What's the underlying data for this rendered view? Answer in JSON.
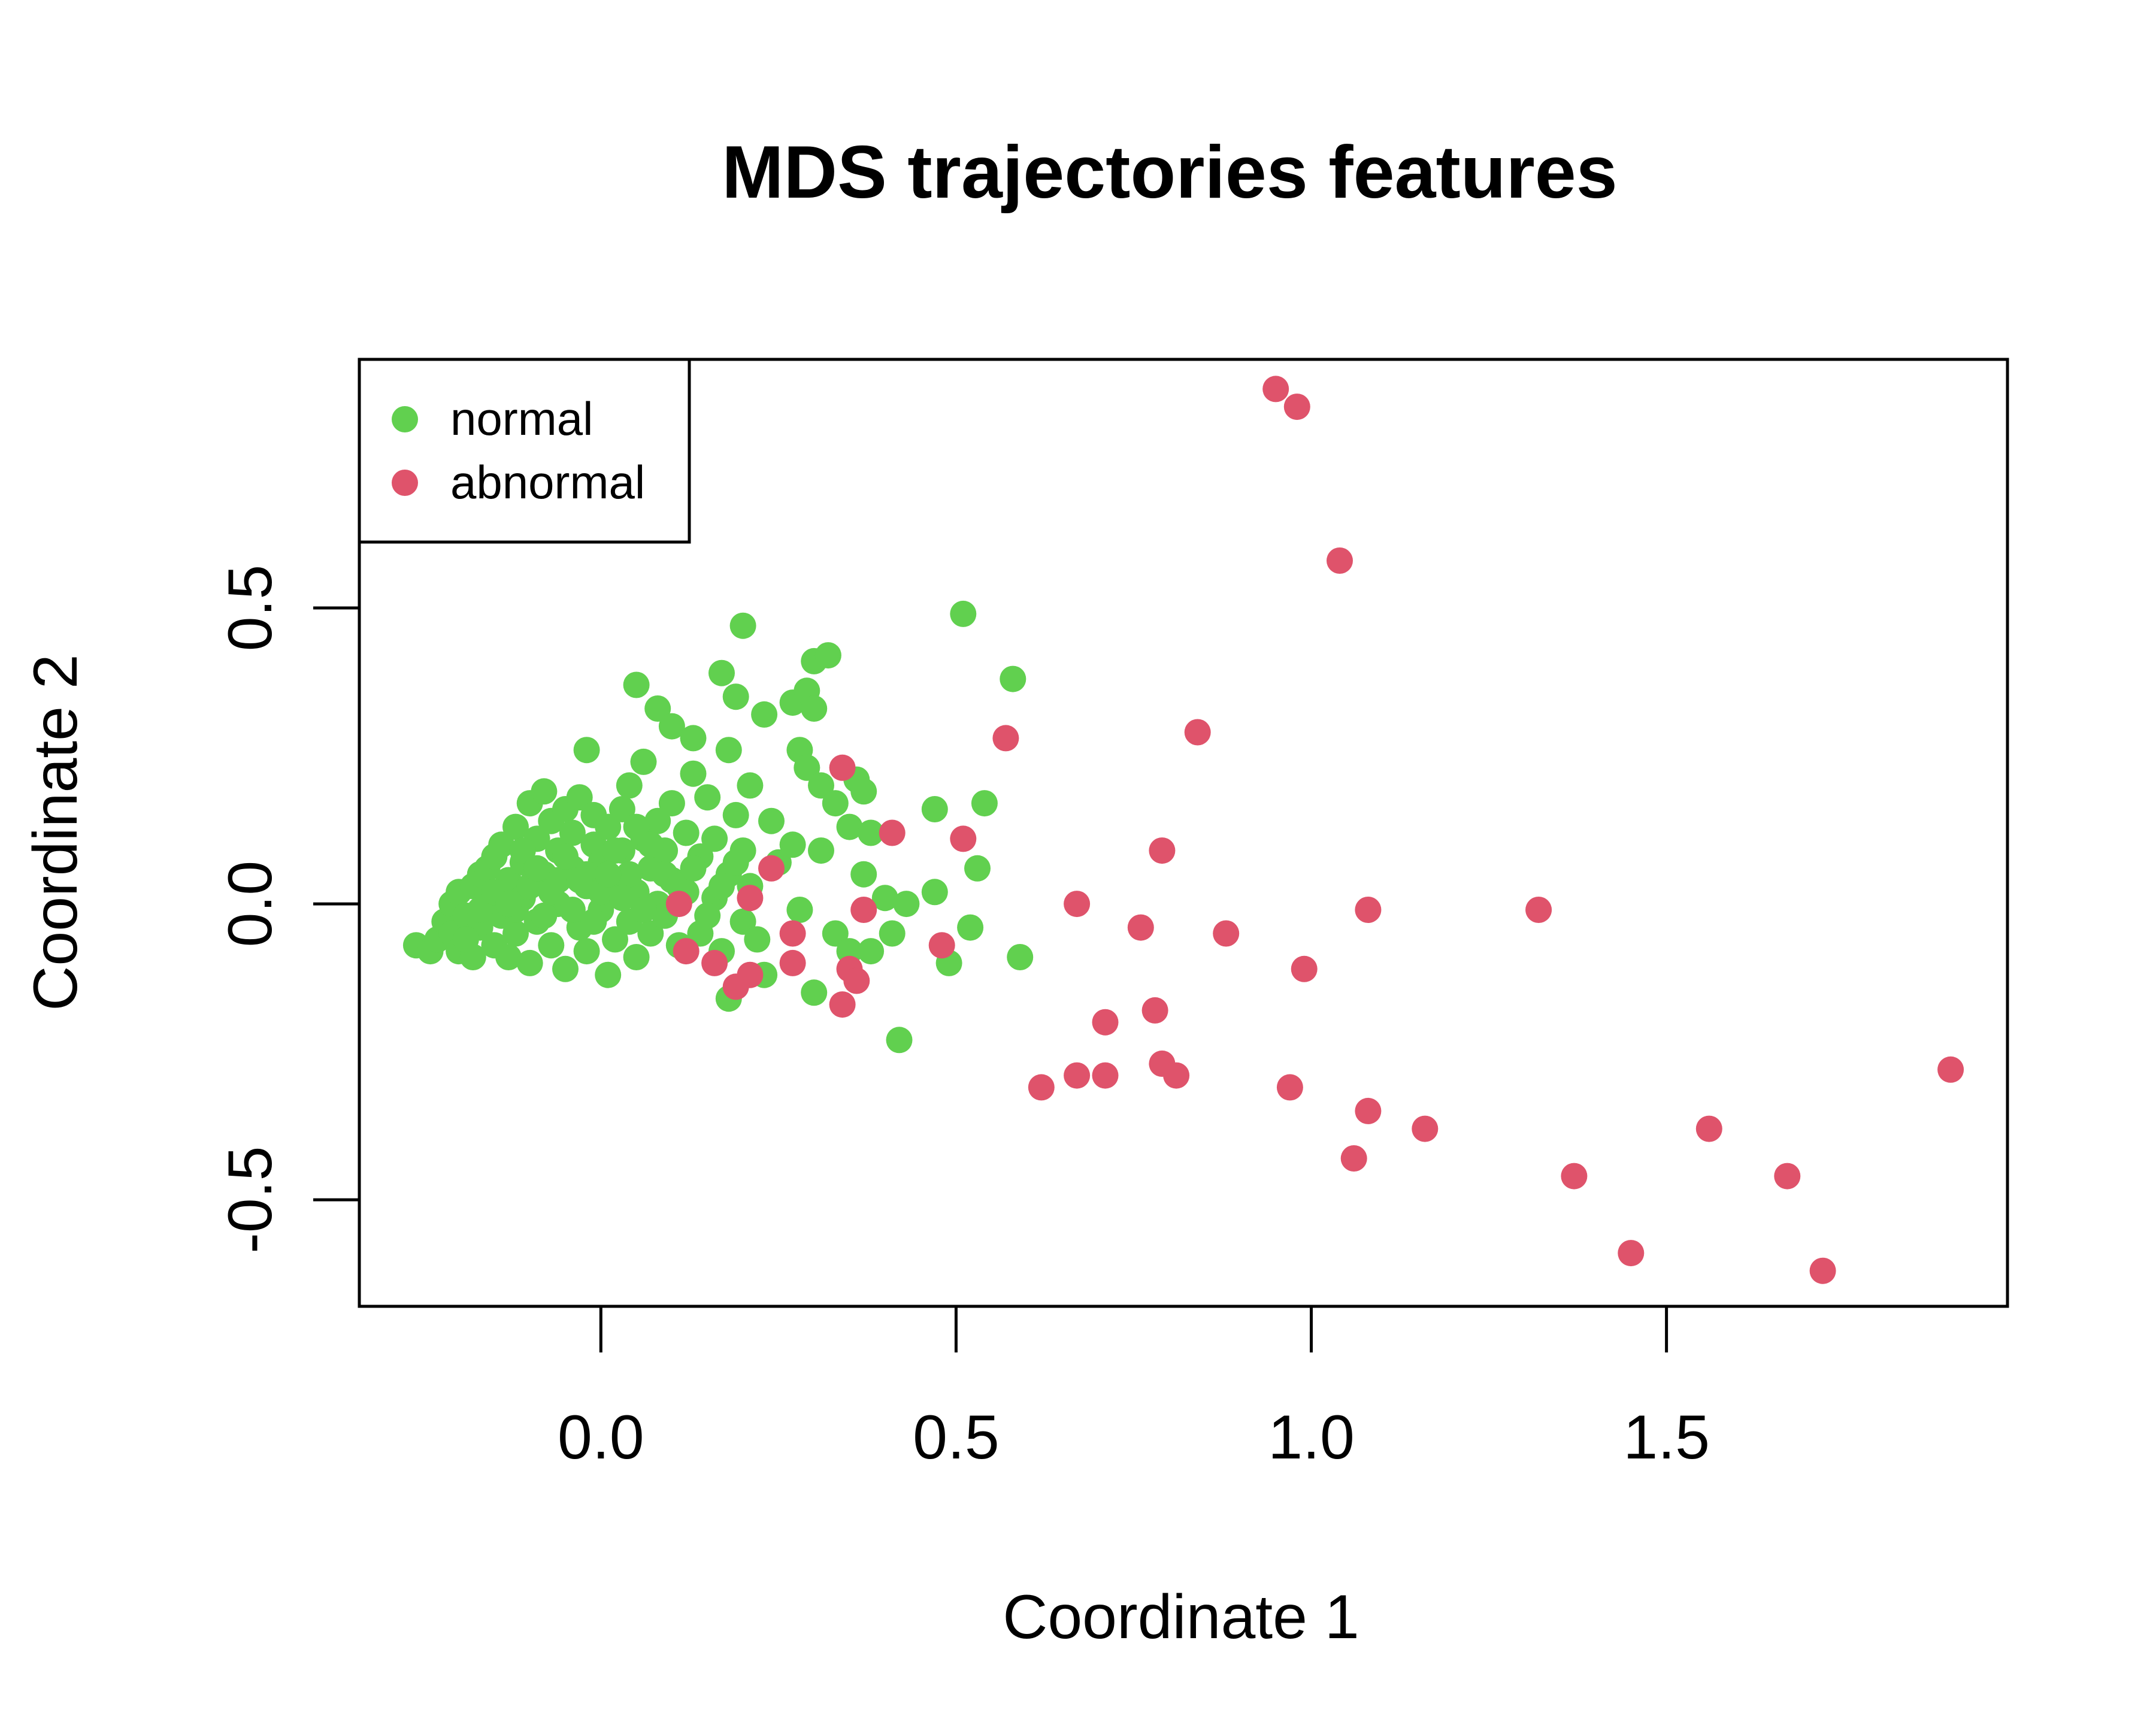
{
  "chart_data": {
    "type": "scatter",
    "title": "MDS trajectories features",
    "xlabel": "Coordinate 1",
    "ylabel": "Coordinate 2",
    "xlim": [
      -0.34,
      1.98
    ],
    "ylim": [
      -0.68,
      0.92
    ],
    "x_ticks": [
      {
        "value": 0.0,
        "label": "0.0"
      },
      {
        "value": 0.5,
        "label": "0.5"
      },
      {
        "value": 1.0,
        "label": "1.0"
      },
      {
        "value": 1.5,
        "label": "1.5"
      }
    ],
    "y_ticks": [
      {
        "value": -0.5,
        "label": "-0.5"
      },
      {
        "value": 0.0,
        "label": "0.0"
      },
      {
        "value": 0.5,
        "label": "0.5"
      }
    ],
    "grid": false,
    "legend": {
      "position": "top-left",
      "entries": [
        {
          "label": "normal",
          "color": "#61D04F"
        },
        {
          "label": "abnormal",
          "color": "#DF536B"
        }
      ]
    },
    "series": [
      {
        "name": "normal",
        "color": "#61D04F",
        "points": [
          [
            -0.26,
            -0.07
          ],
          [
            -0.24,
            -0.08
          ],
          [
            -0.23,
            -0.06
          ],
          [
            -0.22,
            -0.03
          ],
          [
            -0.21,
            0.0
          ],
          [
            -0.21,
            -0.05
          ],
          [
            -0.2,
            0.02
          ],
          [
            -0.2,
            -0.08
          ],
          [
            -0.19,
            -0.02
          ],
          [
            -0.18,
            0.03
          ],
          [
            -0.18,
            -0.09
          ],
          [
            -0.17,
            0.05
          ],
          [
            -0.17,
            -0.04
          ],
          [
            -0.16,
            0.01
          ],
          [
            -0.16,
            0.06
          ],
          [
            -0.15,
            -0.07
          ],
          [
            -0.15,
            0.08
          ],
          [
            -0.14,
            -0.02
          ],
          [
            -0.14,
            0.1
          ],
          [
            -0.13,
            0.04
          ],
          [
            -0.13,
            -0.09
          ],
          [
            -0.12,
            0.13
          ],
          [
            -0.12,
            -0.05
          ],
          [
            -0.11,
            0.07
          ],
          [
            -0.11,
            0.01
          ],
          [
            -0.1,
            0.17
          ],
          [
            -0.1,
            -0.1
          ],
          [
            -0.09,
            0.11
          ],
          [
            -0.09,
            -0.03
          ],
          [
            -0.08,
            0.19
          ],
          [
            -0.08,
            0.05
          ],
          [
            -0.07,
            0.14
          ],
          [
            -0.07,
            -0.07
          ],
          [
            -0.06,
            0.09
          ],
          [
            -0.06,
            0.0
          ],
          [
            -0.05,
            0.16
          ],
          [
            -0.05,
            -0.11
          ],
          [
            -0.04,
            0.06
          ],
          [
            -0.04,
            0.12
          ],
          [
            -0.03,
            -0.04
          ],
          [
            -0.03,
            0.18
          ],
          [
            -0.02,
            0.03
          ],
          [
            -0.02,
            -0.08
          ],
          [
            -0.01,
            0.1
          ],
          [
            -0.01,
            0.15
          ],
          [
            0.0,
            -0.01
          ],
          [
            0.0,
            0.07
          ],
          [
            0.01,
            -0.12
          ],
          [
            0.01,
            0.13
          ],
          [
            0.02,
            0.04
          ],
          [
            0.02,
            -0.06
          ],
          [
            0.03,
            0.16
          ],
          [
            0.03,
            0.09
          ],
          [
            0.04,
            -0.03
          ],
          [
            0.04,
            0.2
          ],
          [
            0.05,
            0.02
          ],
          [
            0.05,
            -0.09
          ],
          [
            0.06,
            0.11
          ],
          [
            0.06,
            0.24
          ],
          [
            0.07,
            0.06
          ],
          [
            0.07,
            -0.05
          ],
          [
            0.08,
            0.14
          ],
          [
            0.08,
            0.0
          ],
          [
            0.09,
            0.09
          ],
          [
            0.09,
            -0.02
          ],
          [
            0.1,
            0.17
          ],
          [
            0.1,
            0.04
          ],
          [
            0.11,
            -0.07
          ],
          [
            0.12,
            0.12
          ],
          [
            0.12,
            0.02
          ],
          [
            0.13,
            0.22
          ],
          [
            0.14,
            -0.05
          ],
          [
            0.14,
            0.08
          ],
          [
            0.15,
            0.18
          ],
          [
            0.16,
            0.01
          ],
          [
            0.16,
            0.11
          ],
          [
            0.17,
            -0.08
          ],
          [
            0.18,
            0.26
          ],
          [
            0.18,
            0.05
          ],
          [
            0.19,
            0.15
          ],
          [
            0.2,
            -0.03
          ],
          [
            0.2,
            0.09
          ],
          [
            0.21,
            0.2
          ],
          [
            0.22,
            -0.06
          ],
          [
            -0.02,
            0.26
          ],
          [
            0.05,
            0.37
          ],
          [
            0.08,
            0.33
          ],
          [
            0.1,
            0.3
          ],
          [
            0.13,
            0.28
          ],
          [
            0.17,
            0.39
          ],
          [
            0.19,
            0.35
          ],
          [
            0.2,
            0.47
          ],
          [
            0.23,
            0.32
          ],
          [
            0.27,
            0.34
          ],
          [
            0.29,
            0.36
          ],
          [
            0.3,
            0.33
          ],
          [
            0.3,
            0.41
          ],
          [
            0.32,
            0.42
          ],
          [
            0.28,
            0.26
          ],
          [
            0.29,
            0.23
          ],
          [
            0.31,
            0.2
          ],
          [
            0.33,
            0.17
          ],
          [
            0.36,
            0.21
          ],
          [
            0.37,
            0.19
          ],
          [
            0.35,
            0.13
          ],
          [
            0.38,
            0.12
          ],
          [
            0.37,
            0.05
          ],
          [
            0.4,
            0.01
          ],
          [
            0.43,
            0.0
          ],
          [
            0.47,
            0.02
          ],
          [
            0.41,
            -0.05
          ],
          [
            0.52,
            -0.04
          ],
          [
            0.53,
            0.06
          ],
          [
            0.47,
            0.16
          ],
          [
            0.54,
            0.17
          ],
          [
            0.51,
            0.49
          ],
          [
            0.58,
            0.38
          ],
          [
            0.59,
            -0.09
          ],
          [
            0.49,
            -0.1
          ],
          [
            0.42,
            -0.23
          ],
          [
            0.3,
            -0.15
          ],
          [
            0.18,
            -0.16
          ],
          [
            0.23,
            -0.12
          ],
          [
            0.33,
            -0.05
          ],
          [
            0.35,
            -0.08
          ],
          [
            0.38,
            -0.08
          ],
          [
            0.25,
            0.07
          ],
          [
            0.27,
            0.1
          ],
          [
            0.24,
            0.14
          ],
          [
            0.21,
            0.03
          ],
          [
            0.28,
            -0.01
          ],
          [
            0.31,
            0.09
          ],
          [
            -0.17,
            -0.01
          ],
          [
            -0.15,
            0.02
          ],
          [
            -0.12,
            -0.01
          ],
          [
            -0.1,
            0.03
          ],
          [
            -0.08,
            -0.02
          ],
          [
            -0.06,
            0.04
          ],
          [
            -0.04,
            -0.01
          ],
          [
            -0.02,
            0.05
          ],
          [
            0.0,
            0.02
          ],
          [
            0.02,
            0.09
          ],
          [
            0.04,
            0.05
          ],
          [
            0.06,
            -0.01
          ],
          [
            -0.19,
            -0.06
          ],
          [
            -0.13,
            0.0
          ],
          [
            -0.11,
            0.09
          ],
          [
            -0.09,
            0.06
          ],
          [
            -0.07,
            0.02
          ],
          [
            -0.05,
            0.08
          ],
          [
            -0.03,
            0.04
          ],
          [
            -0.01,
            -0.03
          ],
          [
            0.01,
            0.05
          ],
          [
            0.03,
            0.01
          ],
          [
            0.05,
            0.13
          ],
          [
            0.07,
            0.1
          ],
          [
            0.09,
            0.05
          ],
          [
            0.11,
            0.03
          ],
          [
            0.13,
            0.06
          ],
          [
            0.15,
            -0.02
          ],
          [
            0.17,
            0.03
          ],
          [
            0.19,
            0.07
          ]
        ]
      },
      {
        "name": "abnormal",
        "color": "#DF536B",
        "points": [
          [
            0.95,
            0.87
          ],
          [
            0.98,
            0.84
          ],
          [
            1.04,
            0.58
          ],
          [
            0.84,
            0.29
          ],
          [
            0.57,
            0.28
          ],
          [
            0.34,
            0.23
          ],
          [
            0.41,
            0.12
          ],
          [
            0.51,
            0.11
          ],
          [
            0.79,
            0.09
          ],
          [
            0.67,
            0.0
          ],
          [
            1.08,
            -0.01
          ],
          [
            1.32,
            -0.01
          ],
          [
            0.76,
            -0.04
          ],
          [
            0.88,
            -0.05
          ],
          [
            0.99,
            -0.11
          ],
          [
            0.48,
            -0.07
          ],
          [
            0.37,
            -0.01
          ],
          [
            0.27,
            -0.05
          ],
          [
            0.24,
            0.06
          ],
          [
            0.21,
            0.01
          ],
          [
            0.27,
            -0.1
          ],
          [
            0.21,
            -0.12
          ],
          [
            0.19,
            -0.14
          ],
          [
            0.16,
            -0.1
          ],
          [
            0.12,
            -0.08
          ],
          [
            0.11,
            0.0
          ],
          [
            0.35,
            -0.11
          ],
          [
            0.36,
            -0.13
          ],
          [
            0.34,
            -0.17
          ],
          [
            0.71,
            -0.2
          ],
          [
            0.78,
            -0.18
          ],
          [
            0.62,
            -0.31
          ],
          [
            0.67,
            -0.29
          ],
          [
            0.71,
            -0.29
          ],
          [
            0.79,
            -0.27
          ],
          [
            0.81,
            -0.29
          ],
          [
            0.97,
            -0.31
          ],
          [
            1.08,
            -0.35
          ],
          [
            1.06,
            -0.43
          ],
          [
            1.16,
            -0.38
          ],
          [
            1.37,
            -0.46
          ],
          [
            1.45,
            -0.59
          ],
          [
            1.56,
            -0.38
          ],
          [
            1.67,
            -0.46
          ],
          [
            1.72,
            -0.62
          ],
          [
            1.9,
            -0.28
          ]
        ]
      }
    ]
  }
}
